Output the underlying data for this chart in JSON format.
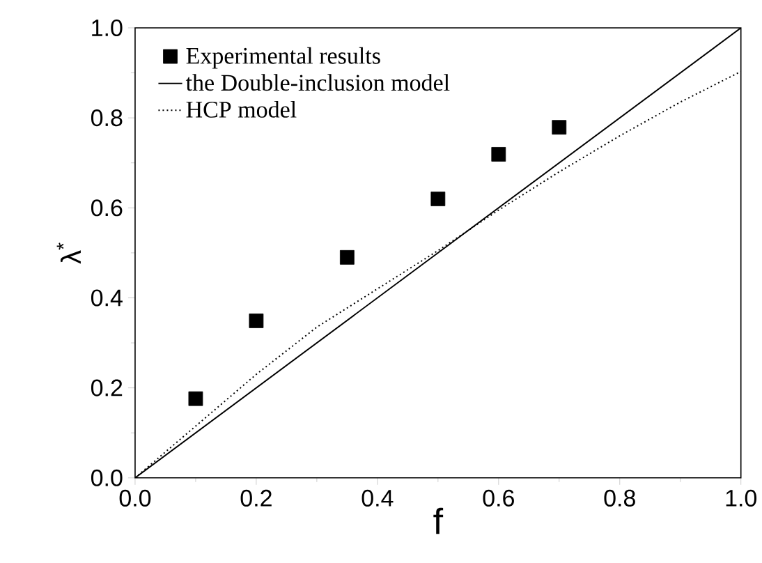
{
  "chart_data": {
    "type": "scatter",
    "xlabel": "f",
    "ylabel": "λ$^{*}$",
    "xlim": [
      0,
      1
    ],
    "ylim": [
      0,
      1
    ],
    "xticks": [
      {
        "value": 0,
        "label": "0.0"
      },
      0.2,
      0.4,
      0.6,
      0.8,
      {
        "value": 1,
        "label": "1.0"
      }
    ],
    "yticks": [
      {
        "value": 0,
        "label": "0.0"
      },
      0.2,
      0.4,
      0.6,
      0.8,
      {
        "value": 1,
        "label": "1.0"
      }
    ],
    "series": [
      {
        "name": "Experimental results",
        "marker": "square",
        "color": "#000000",
        "x": [
          0.1,
          0.2,
          0.35,
          0.5,
          0.6,
          0.7
        ],
        "values": [
          0.176,
          0.349,
          0.49,
          0.62,
          0.719,
          0.779
        ]
      },
      {
        "name": "the Double-inclusion model",
        "type": "line",
        "line_style": "solid",
        "color": "#000000",
        "x": [
          0,
          1
        ],
        "values": [
          0,
          1
        ]
      },
      {
        "name": "HCP model",
        "type": "line",
        "line_style": "dotted",
        "color": "#000000",
        "x": [
          0,
          0.1,
          0.2,
          0.3,
          0.4,
          0.5,
          0.6,
          0.7,
          0.8,
          0.9,
          1
        ],
        "values": [
          0,
          0.115,
          0.23,
          0.335,
          0.42,
          0.505,
          0.595,
          0.68,
          0.76,
          0.835,
          0.903
        ]
      }
    ],
    "legend": "top left",
    "grid": false
  }
}
